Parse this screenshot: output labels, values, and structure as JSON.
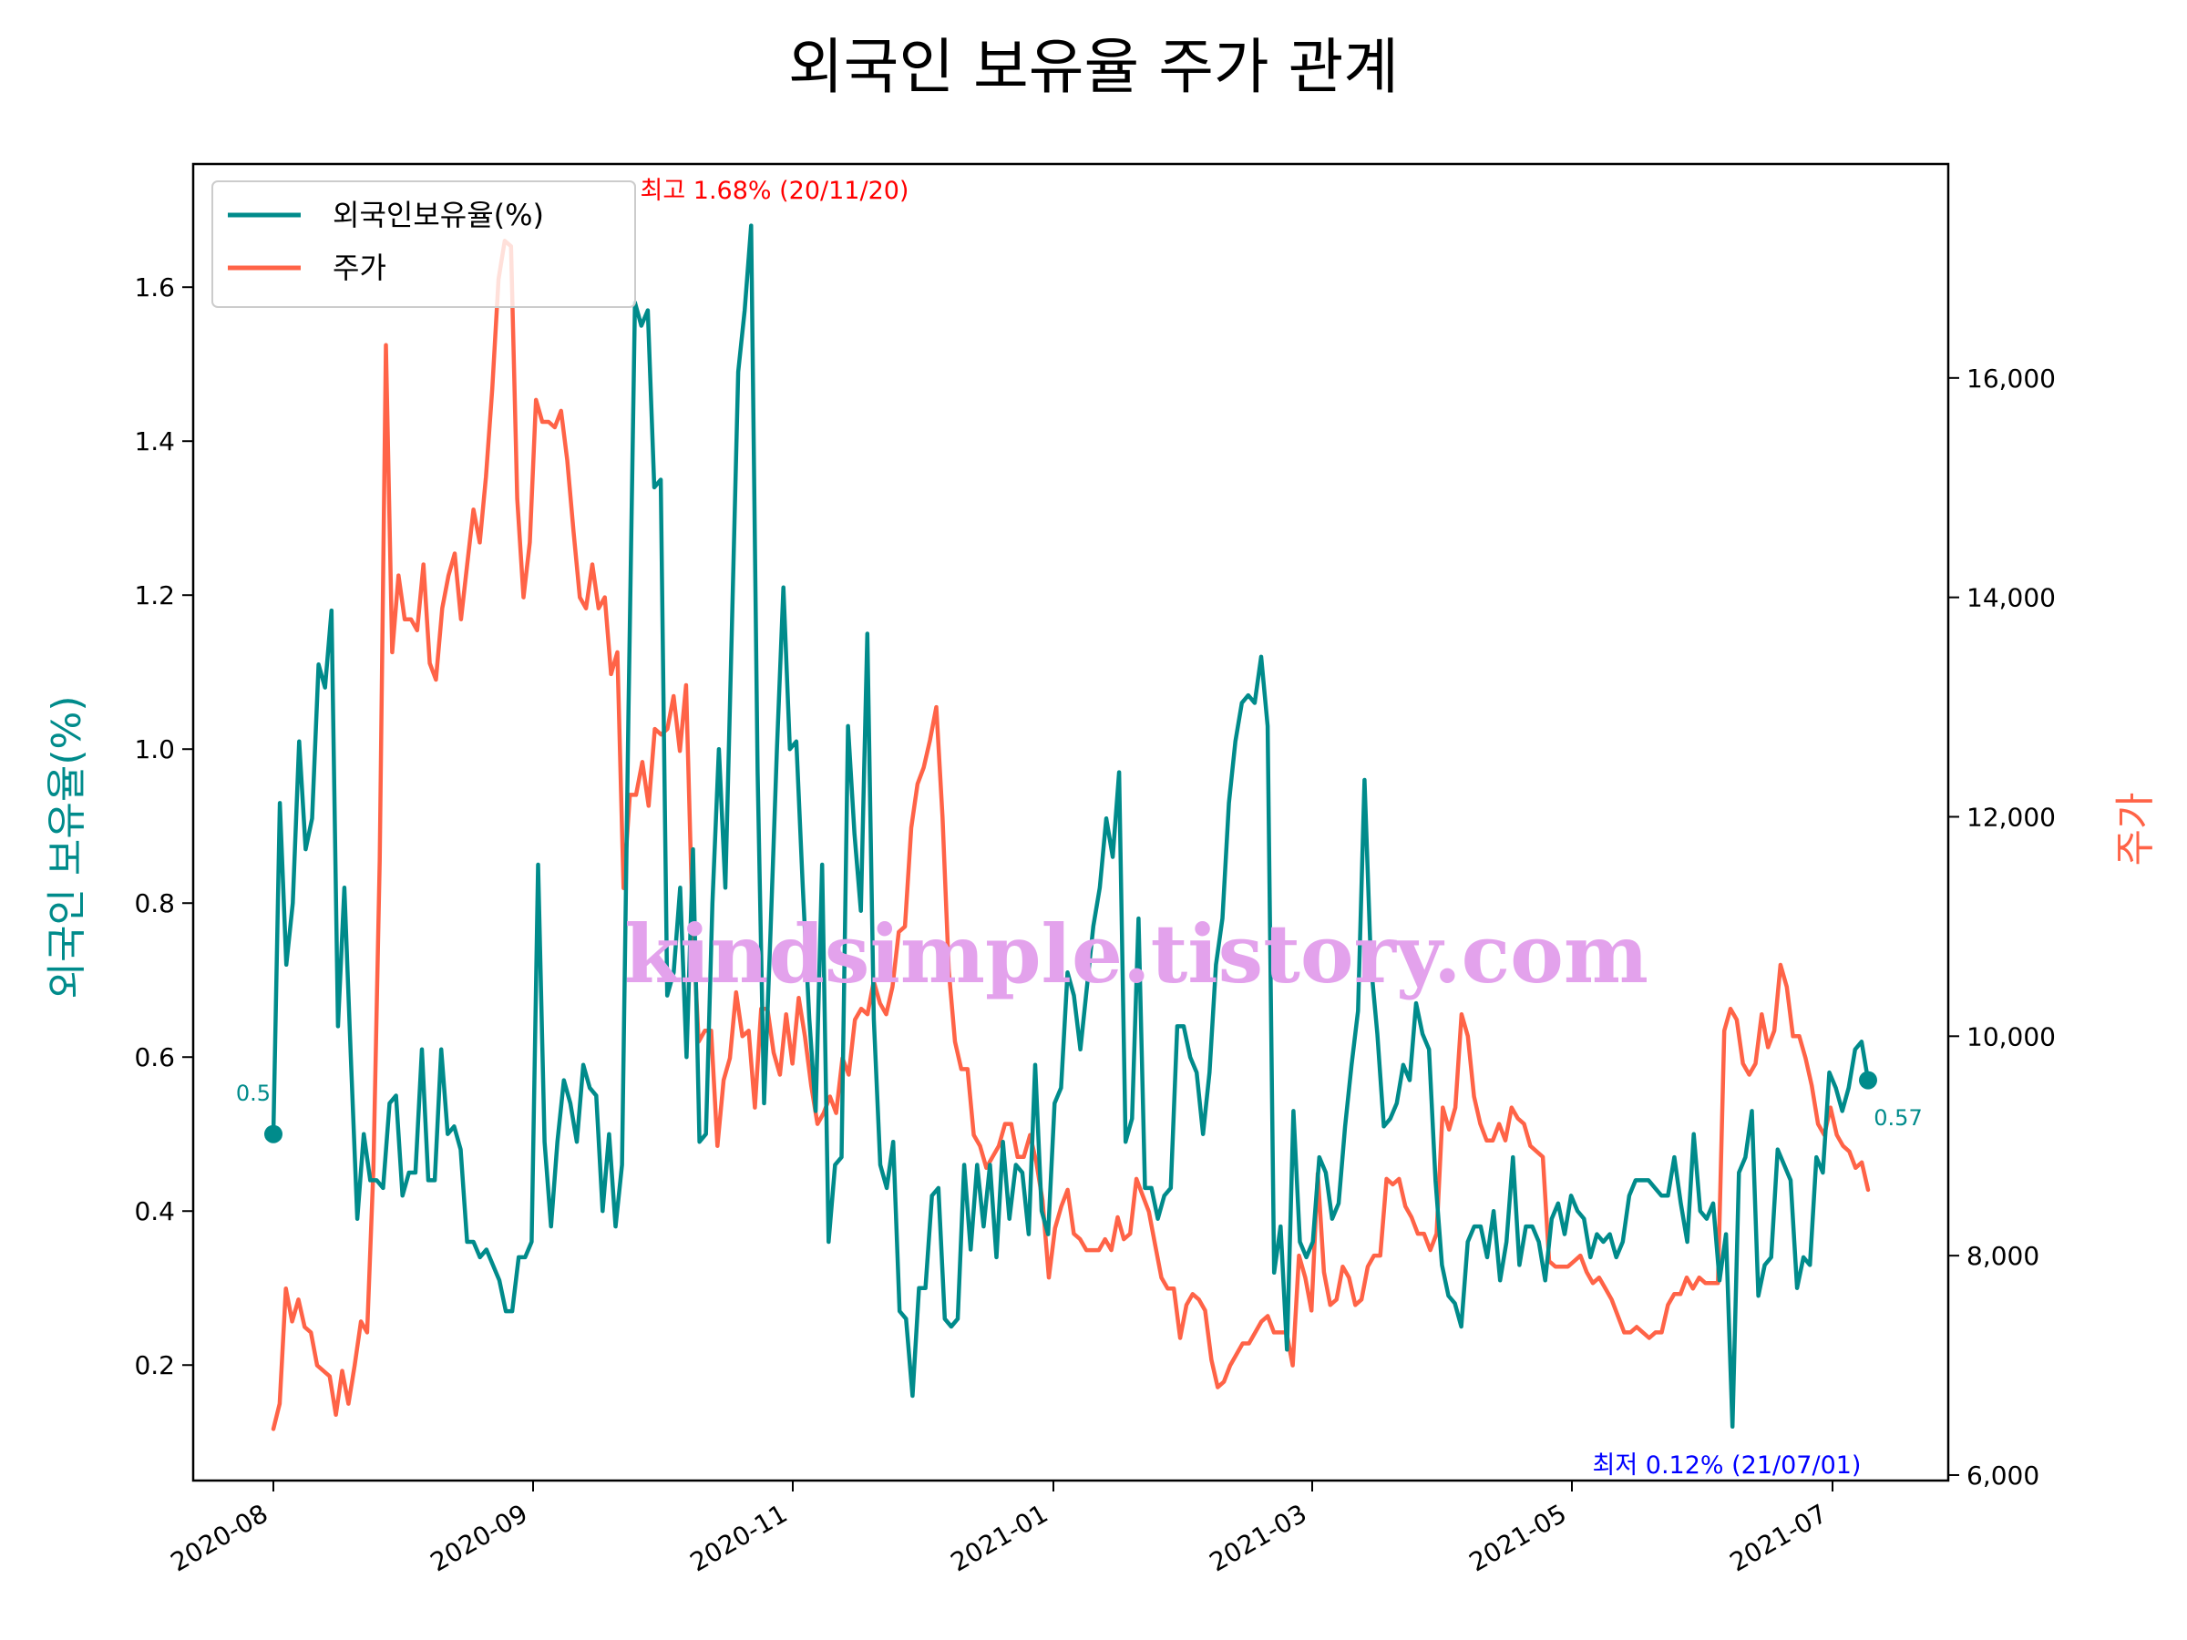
{
  "chart_data": {
    "type": "line",
    "title": "외국인 보유율 주가 관계",
    "ylabel_left": "외국인 보유율(%)",
    "ylabel_right": "주가",
    "x_ticks": [
      "2020-08",
      "2020-09",
      "2020-11",
      "2021-01",
      "2021-03",
      "2021-05",
      "2021-07"
    ],
    "y_left_ticks": [
      "0.2",
      "0.4",
      "0.6",
      "0.8",
      "1.0",
      "1.2",
      "1.4",
      "1.6"
    ],
    "y_right_ticks": [
      "6,000",
      "8,000",
      "10,000",
      "12,000",
      "14,000",
      "16,000"
    ],
    "ylim_left": [
      0.05,
      1.76
    ],
    "ylim_right": [
      5950,
      17950
    ],
    "grid": false,
    "legend_position": "top-left",
    "colors": {
      "foreign": "#008b8b",
      "price": "#ff6347",
      "max": "#ff0000",
      "min": "#0000ff",
      "watermark": "#e3a2ec"
    },
    "watermark": "kindsimple.tistory.com",
    "annotations": {
      "max": "최고 1.68% (20/11/20)",
      "min": "최저 0.12% (21/07/01)",
      "start": "0.5",
      "end": "0.57"
    },
    "series": [
      {
        "name": "외국인보유율(%)",
        "axis": "left",
        "values": [
          0.5,
          0.93,
          0.72,
          0.8,
          1.01,
          0.87,
          0.91,
          1.11,
          1.08,
          1.18,
          0.64,
          0.82,
          0.6,
          0.39,
          0.5,
          0.44,
          0.44,
          0.43,
          0.54,
          0.55,
          0.42,
          0.45,
          0.45,
          0.61,
          0.44,
          0.44,
          0.61,
          0.5,
          0.51,
          0.48,
          0.36,
          0.36,
          0.34,
          0.35,
          0.33,
          0.31,
          0.27,
          0.27,
          0.34,
          0.34,
          0.36,
          0.85,
          0.49,
          0.38,
          0.49,
          0.57,
          0.54,
          0.49,
          0.59,
          0.56,
          0.55,
          0.4,
          0.5,
          0.38,
          0.46,
          1.05,
          1.58,
          1.55,
          1.57,
          1.34,
          1.35,
          0.68,
          0.71,
          0.82,
          0.6,
          0.87,
          0.49,
          0.5,
          0.8,
          1.0,
          0.82,
          1.15,
          1.49,
          1.57,
          1.68,
          0.97,
          0.54,
          0.76,
          1.0,
          1.21,
          1.0,
          1.01,
          0.82,
          0.65,
          0.53,
          0.85,
          0.36,
          0.46,
          0.47,
          1.03,
          0.89,
          0.79,
          1.15,
          0.65,
          0.46,
          0.43,
          0.49,
          0.27,
          0.26,
          0.16,
          0.3,
          0.3,
          0.42,
          0.43,
          0.26,
          0.25,
          0.26,
          0.46,
          0.35,
          0.46,
          0.38,
          0.46,
          0.34,
          0.49,
          0.39,
          0.46,
          0.45,
          0.37,
          0.59,
          0.4,
          0.37,
          0.54,
          0.56,
          0.71,
          0.68,
          0.61,
          0.69,
          0.77,
          0.82,
          0.91,
          0.86,
          0.97,
          0.49,
          0.52,
          0.78,
          0.43,
          0.43,
          0.39,
          0.42,
          0.43,
          0.64,
          0.64,
          0.6,
          0.58,
          0.5,
          0.58,
          0.72,
          0.78,
          0.93,
          1.01,
          1.06,
          1.07,
          1.06,
          1.12,
          1.03,
          0.32,
          0.38,
          0.22,
          0.53,
          0.36,
          0.34,
          0.36,
          0.47,
          0.45,
          0.39,
          0.41,
          0.51,
          0.59,
          0.66,
          0.96,
          0.72,
          0.63,
          0.51,
          0.52,
          0.54,
          0.59,
          0.57,
          0.67,
          0.63,
          0.61,
          0.44,
          0.33,
          0.29,
          0.28,
          0.25,
          0.36,
          0.38,
          0.38,
          0.34,
          0.4,
          0.31,
          0.36,
          0.47,
          0.33,
          0.38,
          0.38,
          0.36,
          0.31,
          0.39,
          0.41,
          0.37,
          0.42,
          0.4,
          0.39,
          0.34,
          0.37,
          0.36,
          0.37,
          0.34,
          0.36,
          0.42,
          0.44,
          0.44,
          0.44,
          0.43,
          0.42,
          0.42,
          0.47,
          0.41,
          0.36,
          0.5,
          0.4,
          0.39,
          0.41,
          0.31,
          0.37,
          0.12,
          0.45,
          0.47,
          0.53,
          0.29,
          0.33,
          0.34,
          0.48,
          0.46,
          0.44,
          0.3,
          0.34,
          0.33,
          0.47,
          0.45,
          0.58,
          0.56,
          0.53,
          0.56,
          0.61,
          0.62,
          0.57
        ]
      },
      {
        "name": "주가",
        "axis": "right",
        "values": [
          6420,
          6650,
          7700,
          7400,
          7600,
          7350,
          7300,
          7000,
          6950,
          6900,
          6550,
          6950,
          6650,
          7000,
          7400,
          7300,
          8800,
          11600,
          16300,
          13500,
          14200,
          13800,
          13800,
          13700,
          14300,
          13400,
          13250,
          13900,
          14200,
          14400,
          13800,
          14300,
          14800,
          14500,
          15100,
          15900,
          16900,
          17250,
          17200,
          14900,
          14000,
          14500,
          15800,
          15600,
          15600,
          15550,
          15700,
          15250,
          14600,
          14000,
          13900,
          14300,
          13900,
          14000,
          13300,
          13500,
          11350,
          12200,
          12200,
          12500,
          12100,
          12800,
          12750,
          12800,
          13100,
          12600,
          13200,
          11100,
          9950,
          10050,
          10050,
          9000,
          9600,
          9800,
          10400,
          10000,
          10050,
          9350,
          10250,
          10250,
          9850,
          9650,
          10200,
          9750,
          10350,
          10000,
          9550,
          9200,
          9300,
          9450,
          9300,
          9800,
          9650,
          10150,
          10250,
          10200,
          10500,
          10300,
          10200,
          10450,
          10950,
          11000,
          11900,
          12300,
          12450,
          12700,
          13000,
          12000,
          10600,
          9950,
          9700,
          9700,
          9100,
          9000,
          8800,
          8900,
          9000,
          9200,
          9200,
          8900,
          8900,
          9100,
          8850,
          8500,
          7800,
          8250,
          8450,
          8600,
          8200,
          8150,
          8050,
          8050,
          8050,
          8150,
          8050,
          8350,
          8150,
          8200,
          8700,
          8550,
          8400,
          8100,
          7800,
          7700,
          7700,
          7250,
          7550,
          7650,
          7600,
          7500,
          7050,
          6800,
          6850,
          7000,
          7100,
          7200,
          7200,
          7300,
          7400,
          7450,
          7300,
          7300,
          7300,
          7000,
          8000,
          7800,
          7500,
          8750,
          7850,
          7550,
          7600,
          7900,
          7800,
          7550,
          7600,
          7900,
          8000,
          8000,
          8700,
          8650,
          8700,
          8450,
          8350,
          8200,
          8200,
          8050,
          8200,
          9350,
          9150,
          9350,
          10200,
          10000,
          9450,
          9200,
          9050,
          9050,
          9200,
          9050,
          9350,
          9250,
          9200,
          9000,
          8950,
          8900,
          7950,
          7900,
          7900,
          7900,
          7950,
          8000,
          7850,
          7750,
          7800,
          7700,
          7600,
          7450,
          7300,
          7300,
          7350,
          7300,
          7250,
          7300,
          7300,
          7550,
          7650,
          7650,
          7800,
          7700,
          7800,
          7750,
          7750,
          7750,
          10050,
          10250,
          10150,
          9750,
          9650,
          9750,
          10200,
          9900,
          10050,
          10650,
          10450,
          10000,
          10000,
          9800,
          9550,
          9200,
          9100,
          9350,
          9100,
          9000,
          8950,
          8800,
          8850,
          8600
        ]
      }
    ]
  }
}
